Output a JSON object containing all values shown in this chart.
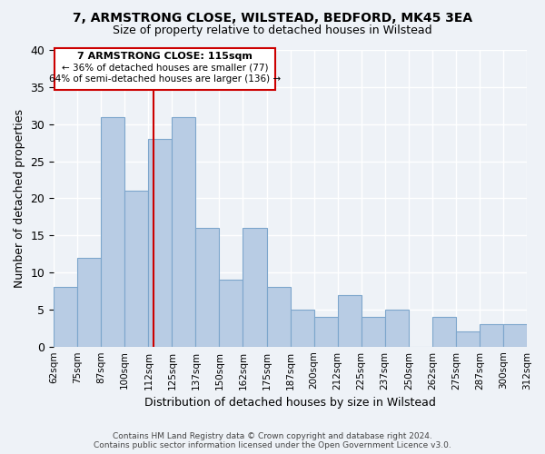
{
  "title1": "7, ARMSTRONG CLOSE, WILSTEAD, BEDFORD, MK45 3EA",
  "title2": "Size of property relative to detached houses in Wilstead",
  "xlabel": "Distribution of detached houses by size in Wilstead",
  "ylabel": "Number of detached properties",
  "bin_labels": [
    "62sqm",
    "75sqm",
    "87sqm",
    "100sqm",
    "112sqm",
    "125sqm",
    "137sqm",
    "150sqm",
    "162sqm",
    "175sqm",
    "187sqm",
    "200sqm",
    "212sqm",
    "225sqm",
    "237sqm",
    "250sqm",
    "262sqm",
    "275sqm",
    "287sqm",
    "300sqm",
    "312sqm"
  ],
  "bin_values": [
    8,
    12,
    31,
    21,
    28,
    31,
    16,
    9,
    16,
    8,
    5,
    4,
    7,
    4,
    5,
    0,
    4,
    2,
    3,
    3
  ],
  "bar_color": "#b8cce4",
  "bar_edge_color": "#7da6cc",
  "annotation_title": "7 ARMSTRONG CLOSE: 115sqm",
  "annotation_line1": "← 36% of detached houses are smaller (77)",
  "annotation_line2": "64% of semi-detached houses are larger (136) →",
  "annotation_box_color": "#ffffff",
  "annotation_box_edge": "#cc0000",
  "reference_line_color": "#cc0000",
  "ylim": [
    0,
    40
  ],
  "footer1": "Contains HM Land Registry data © Crown copyright and database right 2024.",
  "footer2": "Contains public sector information licensed under the Open Government Licence v3.0.",
  "bg_color": "#eef2f7",
  "grid_color": "#ffffff"
}
